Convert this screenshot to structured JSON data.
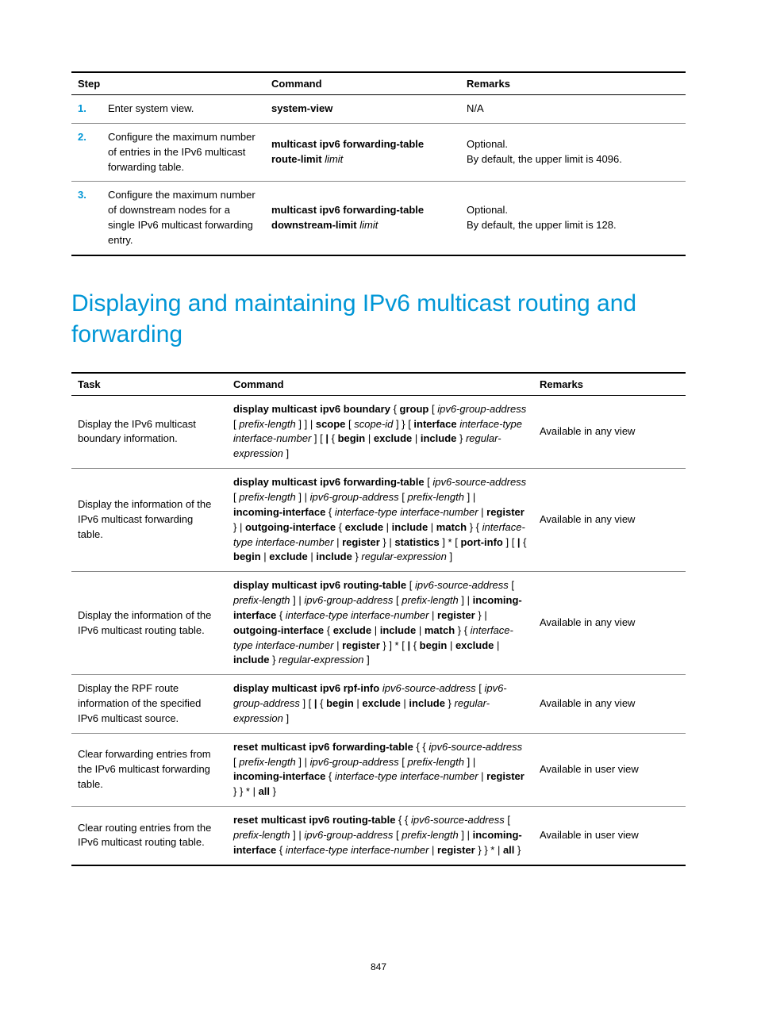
{
  "colors": {
    "accent": "#0096d6",
    "text": "#000000",
    "background": "#ffffff"
  },
  "table1": {
    "headers": {
      "step": "Step",
      "command": "Command",
      "remarks": "Remarks"
    },
    "rows": [
      {
        "num": "1.",
        "desc": "Enter system view.",
        "cmd_html": "<b>system-view</b>",
        "remarks": "N/A"
      },
      {
        "num": "2.",
        "desc": "Configure the maximum number of entries in the IPv6 multicast forwarding table.",
        "cmd_html": "<b>multicast ipv6 forwarding-table route-limit</b> <i>limit</i>",
        "remarks": "Optional.\nBy default, the upper limit is 4096."
      },
      {
        "num": "3.",
        "desc": "Configure the maximum number of downstream nodes for a single IPv6 multicast forwarding entry.",
        "cmd_html": "<b>multicast ipv6 forwarding-table downstream-limit</b> <i>limit</i>",
        "remarks": "Optional.\nBy default, the upper limit is 128."
      }
    ]
  },
  "heading": "Displaying and maintaining IPv6 multicast routing and forwarding",
  "table2": {
    "headers": {
      "task": "Task",
      "command": "Command",
      "remarks": "Remarks"
    },
    "rows": [
      {
        "task": "Display the IPv6 multicast boundary information.",
        "cmd_html": "<b>display multicast ipv6 boundary</b> { <b>group</b> [ <i>ipv6-group-address</i> [ <i>prefix-length</i> ] ] | <b>scope</b> [ <i>scope-id</i> ] } [ <b>interface</b> <i>interface-type interface-number</i> ] [ <b>|</b> { <b>begin</b> | <b>exclude</b> | <b>include</b> } <i>regular-expression</i> ]",
        "remarks": "Available in any view"
      },
      {
        "task": "Display the information of the IPv6 multicast forwarding table.",
        "cmd_html": "<b>display multicast ipv6 forwarding-table</b> [ <i>ipv6-source-address</i> [ <i>prefix-length</i> ] | <i>ipv6-group-address</i> [ <i>prefix-length</i> ] | <b>incoming-interface</b> { <i>interface-type interface-number</i> | <b>register</b> } | <b>outgoing-interface</b> { <b>exclude</b> | <b>include</b> | <b>match</b> } { <i>interface-type interface-number</i> | <b>register</b> } | <b>statistics</b> ] * [ <b>port-info</b> ] [ <b>|</b> { <b>begin</b> | <b>exclude</b> | <b>include</b> } <i>regular-expression</i> ]",
        "remarks": "Available in any view"
      },
      {
        "task": "Display the information of the IPv6 multicast routing table.",
        "cmd_html": "<b>display multicast ipv6 routing-table</b> [ <i>ipv6-source-address</i> [ <i>prefix-length</i> ] | <i>ipv6-group-address</i> [ <i>prefix-length</i> ] | <b>incoming-interface</b> { <i>interface-type interface-number</i> | <b>register</b> } | <b>outgoing-interface</b> { <b>exclude</b> | <b>include</b> | <b>match</b> } { <i>interface-type interface-number</i> | <b>register</b> } ] * [ <b>|</b> { <b>begin</b> | <b>exclude</b> | <b>include</b> } <i>regular-expression</i> ]",
        "remarks": "Available in any view"
      },
      {
        "task": "Display the RPF route information of the specified IPv6 multicast source.",
        "cmd_html": "<b>display multicast ipv6 rpf-info</b> <i>ipv6-source-address</i> [ <i>ipv6-group-address</i> ] [ <b>|</b> { <b>begin</b> | <b>exclude</b> | <b>include</b> } <i>regular-expression</i> ]",
        "remarks": "Available in any view"
      },
      {
        "task": "Clear forwarding entries from the IPv6 multicast forwarding table.",
        "cmd_html": "<b>reset multicast ipv6 forwarding-table</b> { { <i>ipv6-source-address</i> [ <i>prefix-length</i> ] | <i>ipv6-group-address</i> [ <i>prefix-length</i> ] | <b>incoming-interface</b> { <i>interface-type interface-number</i> | <b>register</b> } } * | <b>all</b> }",
        "remarks": "Available in user view"
      },
      {
        "task": "Clear routing entries from the IPv6 multicast routing table.",
        "cmd_html": "<b>reset multicast ipv6 routing-table</b> { { <i>ipv6-source-address</i> [ <i>prefix-length</i> ] | <i>ipv6-group-address</i> [ <i>prefix-length</i> ] | <b>incoming-interface</b> { <i>interface-type interface-number</i> | <b>register</b> } } * | <b>all</b> }",
        "remarks": "Available in user view"
      }
    ]
  },
  "pageNumber": "847"
}
